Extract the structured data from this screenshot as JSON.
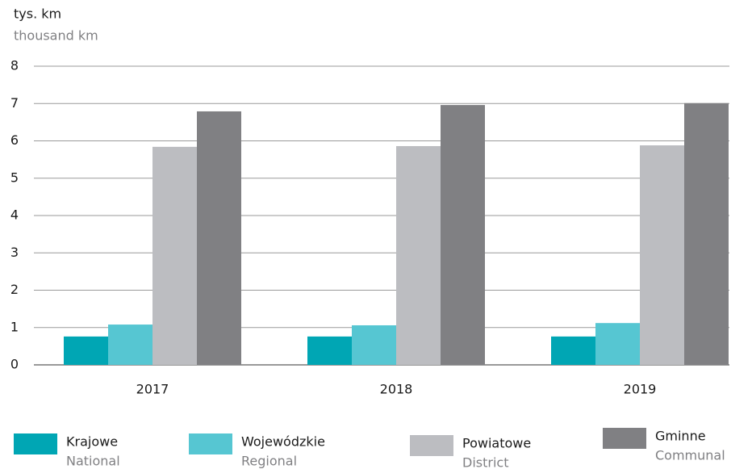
{
  "chart_data": {
    "type": "bar",
    "y_label": "tys. km",
    "y_label_en": "thousand km",
    "categories": [
      "2017",
      "2018",
      "2019"
    ],
    "series": [
      {
        "name": "Krajowe",
        "name_en": "National",
        "color": "#00a6b4",
        "values": [
          0.76,
          0.76,
          0.76
        ]
      },
      {
        "name": "Wojewódzkie",
        "name_en": "Regional",
        "color": "#56c6d2",
        "values": [
          1.08,
          1.06,
          1.12
        ]
      },
      {
        "name": "Powiatowe",
        "name_en": "District",
        "color": "#bcbdc1",
        "values": [
          5.84,
          5.86,
          5.88
        ]
      },
      {
        "name": "Gminne",
        "name_en": "Communal",
        "color": "#808083",
        "values": [
          6.79,
          6.96,
          7.01
        ]
      }
    ],
    "ylim": [
      0,
      8
    ],
    "yticks": [
      0,
      1,
      2,
      3,
      4,
      5,
      6,
      7,
      8
    ],
    "grid": true
  }
}
